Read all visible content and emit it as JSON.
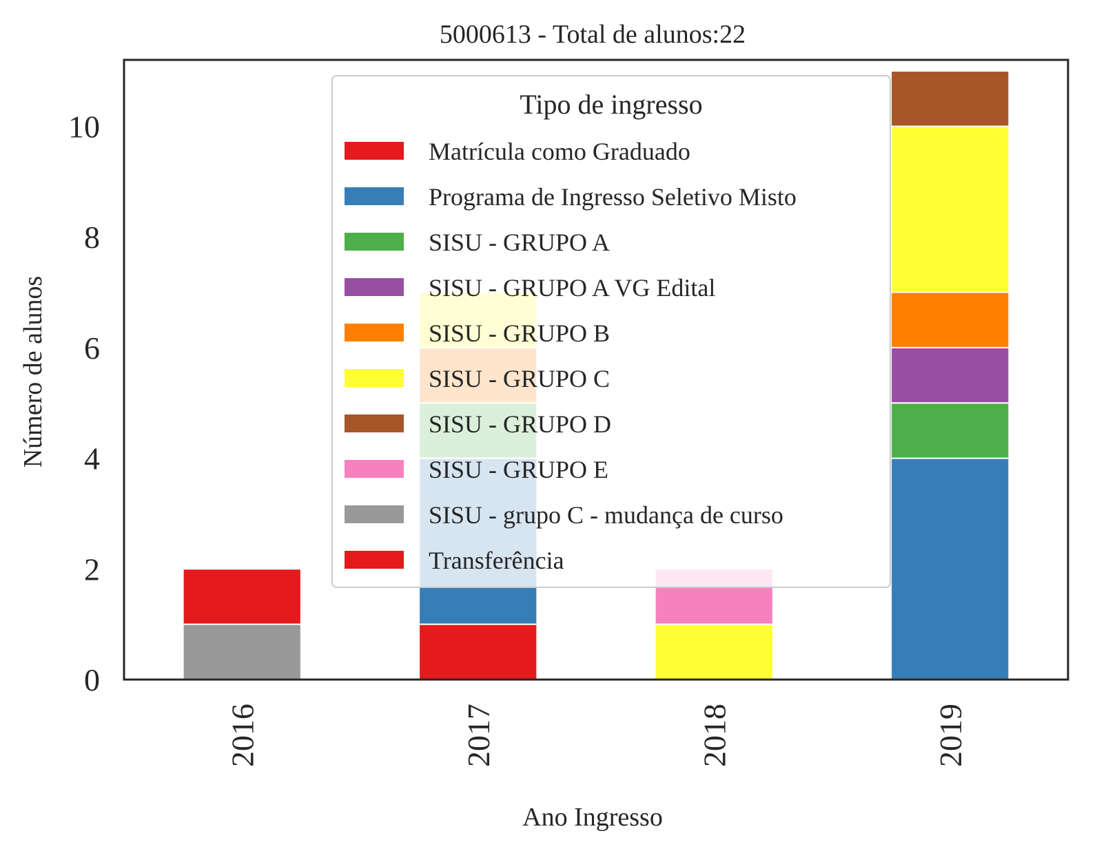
{
  "chart_data": {
    "type": "bar",
    "stacked": true,
    "title": "5000613 - Total de alunos:22",
    "xlabel": "Ano Ingresso",
    "ylabel": "Número de alunos",
    "categories": [
      "2016",
      "2017",
      "2018",
      "2019"
    ],
    "ylim": [
      0,
      11.2
    ],
    "yticks": [
      0,
      2,
      4,
      6,
      8,
      10
    ],
    "grid": false,
    "legend": {
      "title": "Tipo de ingresso",
      "placement": "upper center"
    },
    "series": [
      {
        "name": "Matrícula como Graduado",
        "color": "#e41a1c",
        "values": [
          0,
          1,
          0,
          0
        ]
      },
      {
        "name": "Programa de Ingresso Seletivo Misto",
        "color": "#377eb8",
        "values": [
          0,
          3,
          0,
          4
        ]
      },
      {
        "name": "SISU - GRUPO A",
        "color": "#4daf4a",
        "values": [
          0,
          1,
          0,
          1
        ]
      },
      {
        "name": "SISU - GRUPO A VG Edital",
        "color": "#984ea3",
        "values": [
          0,
          0,
          0,
          1
        ]
      },
      {
        "name": "SISU - GRUPO B",
        "color": "#ff7f00",
        "values": [
          0,
          1,
          0,
          1
        ]
      },
      {
        "name": "SISU - GRUPO C",
        "color": "#ffff33",
        "values": [
          0,
          1,
          1,
          3
        ]
      },
      {
        "name": "SISU - GRUPO D",
        "color": "#a65628",
        "values": [
          0,
          0,
          0,
          1
        ]
      },
      {
        "name": "SISU - GRUPO E",
        "color": "#f781bf",
        "values": [
          0,
          0,
          1,
          0
        ]
      },
      {
        "name": "SISU - grupo C - mudança de curso",
        "color": "#999999",
        "values": [
          1,
          0,
          0,
          0
        ]
      },
      {
        "name": "Transferência",
        "color": "#e41a1c",
        "values": [
          1,
          0,
          0,
          0
        ]
      }
    ]
  }
}
